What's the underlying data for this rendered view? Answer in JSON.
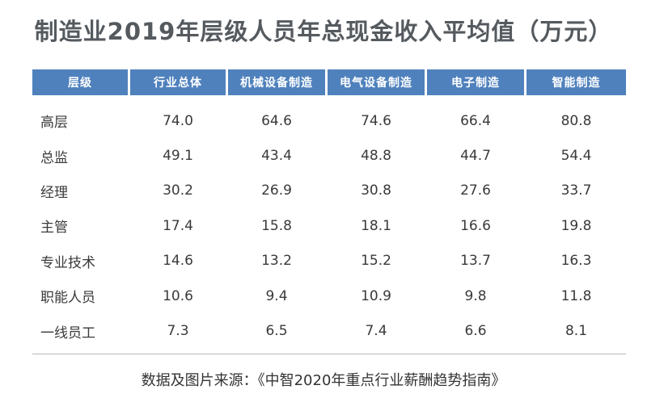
{
  "title": "制造业2019年层级人员年总现金收入平均值（万元）",
  "source": "数据及图片来源：《中智2020年重点行业薪酬趋势指南》",
  "colors": {
    "header_bg": "#4f81bd",
    "header_text": "#ffffff",
    "title_text": "#555a5f"
  },
  "chart_data": {
    "type": "table",
    "title": "制造业2019年层级人员年总现金收入平均值（万元）",
    "columns": [
      "层级",
      "行业总体",
      "机械设备制造",
      "电气设备制造",
      "电子制造",
      "智能制造"
    ],
    "rows": [
      {
        "label": "高层",
        "values": [
          "74.0",
          "64.6",
          "74.6",
          "66.4",
          "80.8"
        ]
      },
      {
        "label": "总监",
        "values": [
          "49.1",
          "43.4",
          "48.8",
          "44.7",
          "54.4"
        ]
      },
      {
        "label": "经理",
        "values": [
          "30.2",
          "26.9",
          "30.8",
          "27.6",
          "33.7"
        ]
      },
      {
        "label": "主管",
        "values": [
          "17.4",
          "15.8",
          "18.1",
          "16.6",
          "19.8"
        ]
      },
      {
        "label": "专业技术",
        "values": [
          "14.6",
          "13.2",
          "15.2",
          "13.7",
          "16.3"
        ]
      },
      {
        "label": "职能人员",
        "values": [
          "10.6",
          "9.4",
          "10.9",
          "9.8",
          "11.8"
        ]
      },
      {
        "label": "一线员工",
        "values": [
          "7.3",
          "6.5",
          "7.4",
          "6.6",
          "8.1"
        ]
      }
    ]
  }
}
